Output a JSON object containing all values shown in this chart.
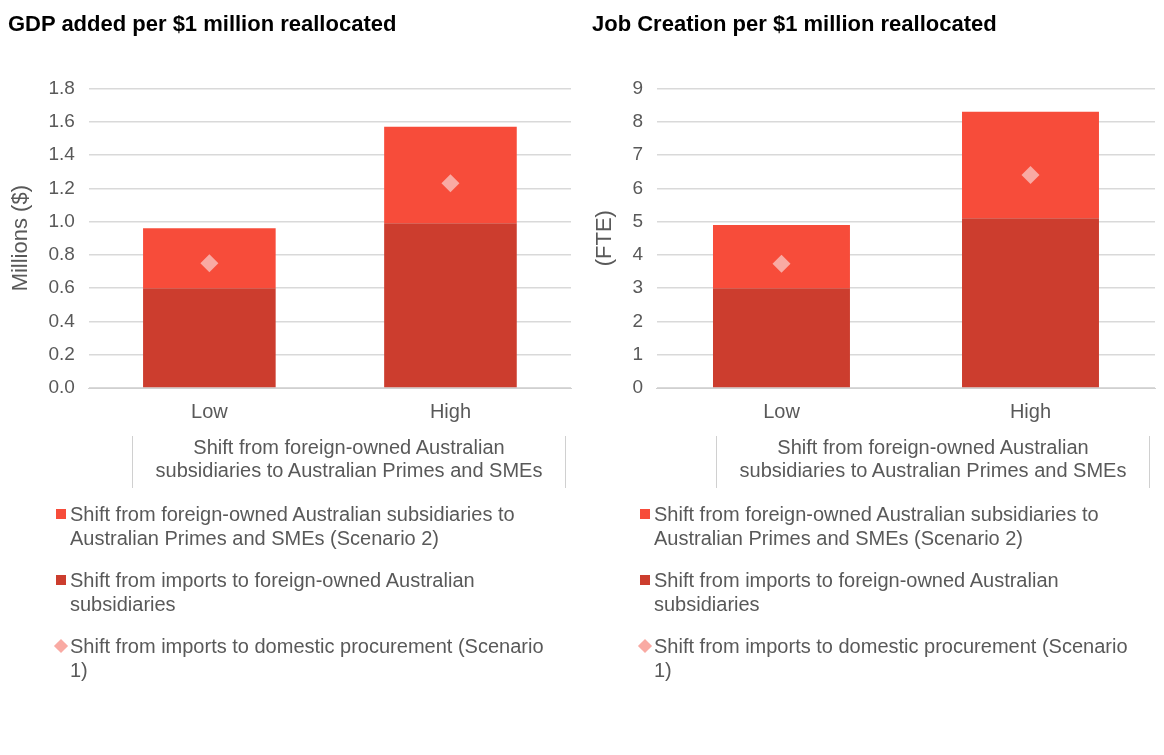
{
  "chart_data": [
    {
      "type": "bar",
      "title": "GDP added per $1 million reallocated",
      "ylabel": "Millions ($)",
      "xlabel": "Shift from foreign-owned Australian subsidiaries to Australian Primes and SMEs",
      "categories": [
        "Low",
        "High"
      ],
      "stacked": true,
      "grid": "y",
      "legend": "bottom",
      "ylim": [
        0,
        1.8
      ],
      "yticks": [
        {
          "value": 0,
          "label": "0.0"
        },
        {
          "value": 0.2,
          "label": "0.2"
        },
        {
          "value": 0.4,
          "label": "0.4"
        },
        {
          "value": 0.6,
          "label": "0.6"
        },
        {
          "value": 0.8,
          "label": "0.8"
        },
        {
          "value": 1,
          "label": "1.0"
        },
        {
          "value": 1.2,
          "label": "1.2"
        },
        {
          "value": 1.4,
          "label": "1.4"
        },
        {
          "value": 1.6,
          "label": "1.6"
        },
        {
          "value": 1.8,
          "label": "1.8"
        }
      ],
      "series": [
        {
          "name": "Shift from imports to foreign-owned Australian subsidiaries",
          "color": "#cc3d2e",
          "values": [
            0.6,
            0.99
          ]
        },
        {
          "name": "Shift from foreign-owned Australian subsidiaries to Australian Primes and SMEs (Scenario 2)",
          "color": "#f74c3a",
          "values": [
            0.36,
            0.58
          ]
        },
        {
          "name": "Shift from imports to domestic procurement (Scenario 1)",
          "type": "scatter",
          "marker": "diamond",
          "color": "#f9aaa3",
          "x": [
            "Low",
            "High"
          ],
          "values": [
            0.75,
            1.23
          ]
        }
      ]
    },
    {
      "type": "bar",
      "title": "Job Creation per $1 million reallocated",
      "ylabel": "(FTE)",
      "xlabel": "Shift from foreign-owned Australian subsidiaries to Australian Primes and SMEs",
      "categories": [
        "Low",
        "High"
      ],
      "stacked": true,
      "grid": "y",
      "legend": "bottom",
      "ylim": [
        0,
        9
      ],
      "yticks": [
        0,
        1,
        2,
        3,
        4,
        5,
        6,
        7,
        8,
        9
      ],
      "series": [
        {
          "name": "Shift from imports to foreign-owned Australian subsidiaries",
          "color": "#cc3d2e",
          "values": [
            3.0,
            5.1
          ]
        },
        {
          "name": "Shift from foreign-owned Australian subsidiaries to Australian Primes and SMEs (Scenario 2)",
          "color": "#f74c3a",
          "values": [
            1.9,
            3.2
          ]
        },
        {
          "name": "Shift from imports to domestic procurement (Scenario 1)",
          "type": "scatter",
          "marker": "diamond",
          "color": "#f9aaa3",
          "x": [
            "Low",
            "High"
          ],
          "values": [
            3.73,
            6.4
          ]
        }
      ]
    }
  ]
}
